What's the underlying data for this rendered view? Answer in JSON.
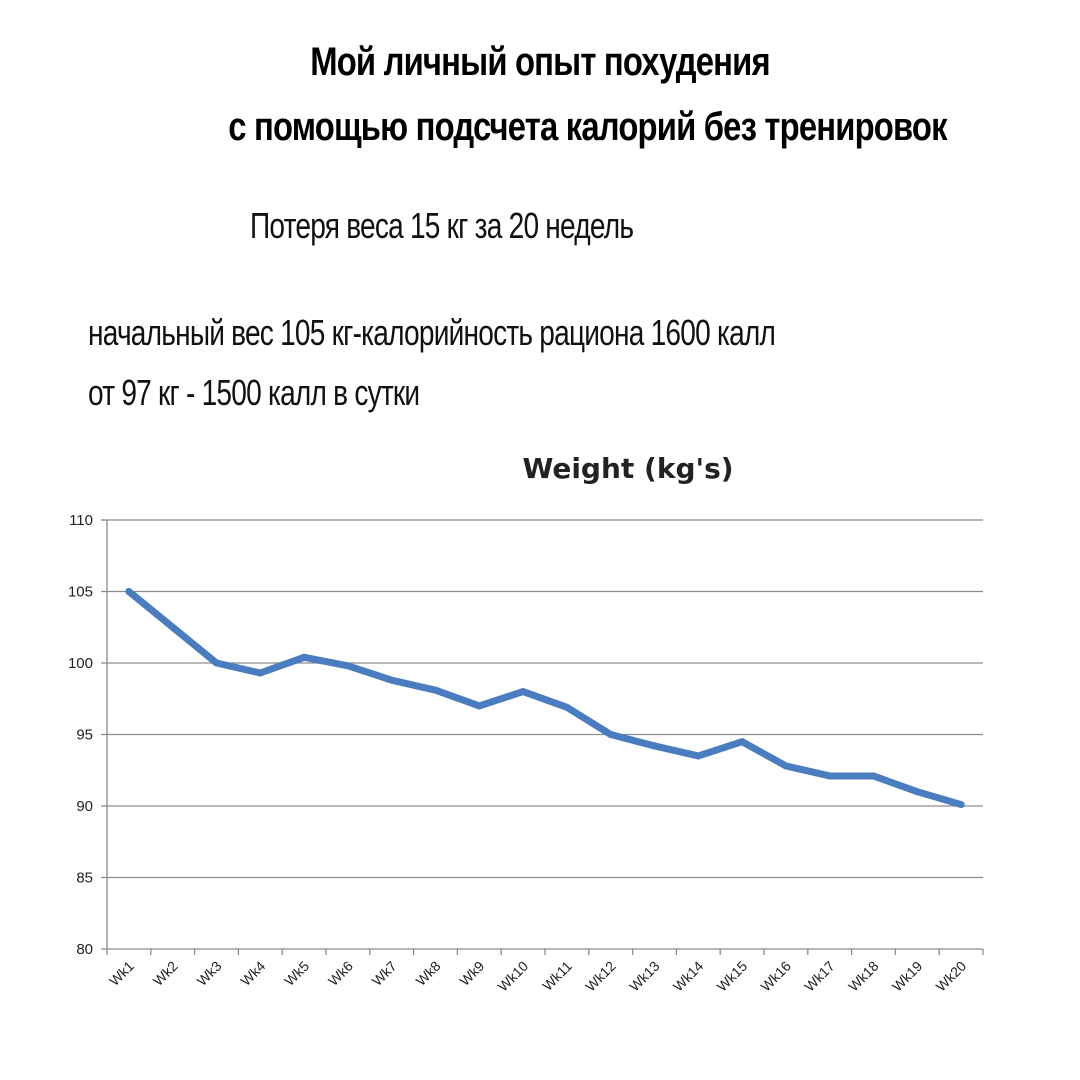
{
  "header": {
    "title_line1": "Мой личный опыт похудения",
    "title_line2": "с помощью подсчета калорий без тренировок",
    "subtitle": "Потеря веса 15 кг за 20 недель",
    "note_line1": "начальный вес 105 кг-калорийность рациона 1600 калл",
    "note_line2": "от 97 кг - 1500 калл в сутки"
  },
  "chart_data": {
    "type": "line",
    "title": "Weight (kg's)",
    "xlabel": "",
    "ylabel": "",
    "categories": [
      "Wk1",
      "Wk2",
      "Wk3",
      "Wk4",
      "Wk5",
      "Wk6",
      "Wk7",
      "Wk8",
      "Wk9",
      "Wk10",
      "Wk11",
      "Wk12",
      "Wk13",
      "Wk14",
      "Wk15",
      "Wk16",
      "Wk17",
      "Wk18",
      "Wk19",
      "Wk20"
    ],
    "series": [
      {
        "values": [
          105,
          102.5,
          100,
          99.3,
          100.4,
          99.8,
          98.8,
          98.1,
          97,
          98,
          96.9,
          95,
          94.2,
          93.5,
          94.5,
          92.8,
          92.1,
          92.1,
          91,
          90.1
        ],
        "color": "#4a7cc0"
      }
    ],
    "ylim": [
      80,
      110
    ],
    "yticks": [
      80,
      85,
      90,
      95,
      100,
      105,
      110
    ],
    "grid": true,
    "legend": "none"
  }
}
